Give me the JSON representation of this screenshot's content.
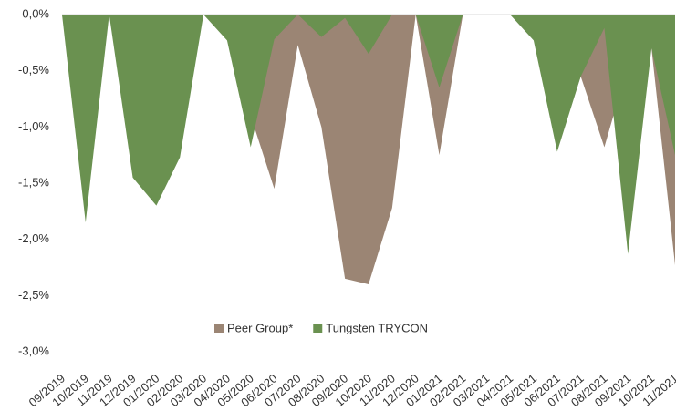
{
  "chart_data": {
    "type": "area",
    "categories": [
      "09/2019",
      "10/2019",
      "11/2019",
      "12/2019",
      "01/2020",
      "02/2020",
      "03/2020",
      "04/2020",
      "05/2020",
      "06/2020",
      "07/2020",
      "08/2020",
      "09/2020",
      "10/2020",
      "11/2020",
      "12/2020",
      "01/2021",
      "02/2021",
      "03/2021",
      "04/2021",
      "05/2021",
      "06/2021",
      "07/2021",
      "08/2021",
      "09/2021",
      "10/2021",
      "11/2021"
    ],
    "series": [
      {
        "name": "Peer Group*",
        "color": "#9b8574",
        "values": [
          0,
          -1.2,
          0,
          -1.0,
          -1.3,
          -1.0,
          0,
          -0.2,
          -0.9,
          -1.55,
          -0.27,
          -1.0,
          -2.35,
          -2.4,
          -1.72,
          0,
          -1.25,
          0,
          0,
          0,
          -0.2,
          -1.2,
          -0.55,
          -1.18,
          -0.45,
          -0.3,
          -2.23
        ]
      },
      {
        "name": "Tungsten TRYCON",
        "color": "#6a9150",
        "values": [
          0,
          -1.85,
          0,
          -1.45,
          -1.7,
          -1.27,
          0,
          -0.23,
          -1.18,
          -0.22,
          0,
          -0.2,
          -0.03,
          -0.35,
          0,
          0,
          -0.65,
          0,
          0,
          0,
          -0.23,
          -1.22,
          -0.55,
          -0.12,
          -2.13,
          -0.3,
          -1.25
        ]
      }
    ],
    "ylim": [
      -3.0,
      0
    ],
    "yticks": [
      {
        "value": 0,
        "label": "0,0%"
      },
      {
        "value": -0.5,
        "label": "-0,5%"
      },
      {
        "value": -1.0,
        "label": "-1,0%"
      },
      {
        "value": -1.5,
        "label": "-1,5%"
      },
      {
        "value": -2.0,
        "label": "-2,0%"
      },
      {
        "value": -2.5,
        "label": "-2,5%"
      },
      {
        "value": -3.0,
        "label": "-3,0%"
      }
    ],
    "legend": "bottom"
  }
}
